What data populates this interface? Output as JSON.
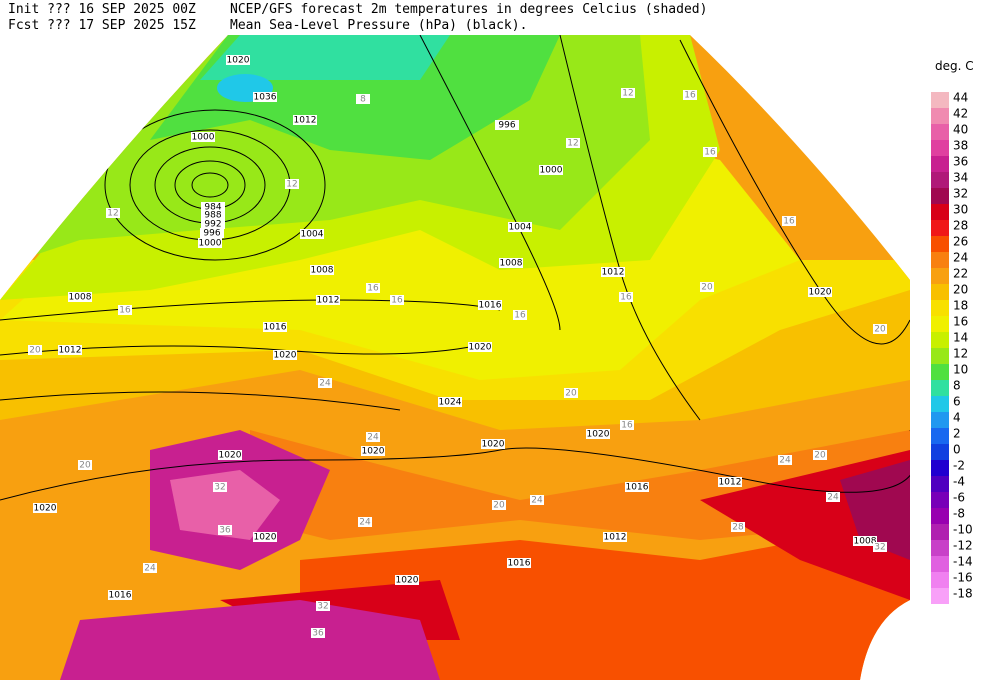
{
  "header": {
    "init": "Init  ??? 16 SEP 2025 00Z",
    "line1": "NCEP/GFS forecast 2m temperatures in degrees Celcius (shaded)",
    "fcst": "Fcst ??? 17 SEP 2025 15Z",
    "line2": "Mean Sea-Level Pressure (hPa) (black)."
  },
  "legend": {
    "title": "deg. C",
    "levels": [
      {
        "label": "44",
        "color": "#f4b8c0"
      },
      {
        "label": "42",
        "color": "#f08ab0"
      },
      {
        "label": "40",
        "color": "#e860a8"
      },
      {
        "label": "38",
        "color": "#e040a0"
      },
      {
        "label": "36",
        "color": "#c82090"
      },
      {
        "label": "34",
        "color": "#b01878"
      },
      {
        "label": "32",
        "color": "#a00850"
      },
      {
        "label": "30",
        "color": "#d80018"
      },
      {
        "label": "28",
        "color": "#f01818"
      },
      {
        "label": "26",
        "color": "#f85000"
      },
      {
        "label": "24",
        "color": "#f88010"
      },
      {
        "label": "22",
        "color": "#f8a010"
      },
      {
        "label": "20",
        "color": "#f8c000"
      },
      {
        "label": "18",
        "color": "#f8e000"
      },
      {
        "label": "16",
        "color": "#f0f000"
      },
      {
        "label": "14",
        "color": "#c8f000"
      },
      {
        "label": "12",
        "color": "#98e818"
      },
      {
        "label": "10",
        "color": "#50e040"
      },
      {
        "label": "8",
        "color": "#30e0a0"
      },
      {
        "label": "6",
        "color": "#20c8e8"
      },
      {
        "label": "4",
        "color": "#2098f0"
      },
      {
        "label": "2",
        "color": "#1868f0"
      },
      {
        "label": "0",
        "color": "#1040e0"
      },
      {
        "label": "-2",
        "color": "#2000d0"
      },
      {
        "label": "-4",
        "color": "#5000c0"
      },
      {
        "label": "-6",
        "color": "#7800b8"
      },
      {
        "label": "-8",
        "color": "#9800b0"
      },
      {
        "label": "-10",
        "color": "#b020b0"
      },
      {
        "label": "-12",
        "color": "#c840c8"
      },
      {
        "label": "-14",
        "color": "#e060e0"
      },
      {
        "label": "-16",
        "color": "#f080f0"
      },
      {
        "label": "-18",
        "color": "#f8a0f8"
      }
    ]
  },
  "map": {
    "isobar_labels": [
      "1020",
      "1036",
      "1012",
      "1000",
      "984",
      "988",
      "992",
      "996",
      "1000",
      "1004",
      "1008",
      "1012",
      "1016",
      "1020",
      "1008",
      "1012",
      "1020",
      "996",
      "1000",
      "1004",
      "1008",
      "1012",
      "1016",
      "1020",
      "1024",
      "1020",
      "1020",
      "1020",
      "1020",
      "1016",
      "1012",
      "1012",
      "1016",
      "1020",
      "1020",
      "1016",
      "1020",
      "1008"
    ],
    "temperature_labels": [
      "8",
      "12",
      "12",
      "16",
      "20",
      "16",
      "16",
      "12",
      "16",
      "16",
      "16",
      "20",
      "20",
      "24",
      "24",
      "20",
      "32",
      "36",
      "24",
      "20",
      "24",
      "28",
      "24",
      "20",
      "24",
      "32",
      "32",
      "36",
      "24",
      "16",
      "16",
      "20",
      "12",
      "16"
    ]
  }
}
